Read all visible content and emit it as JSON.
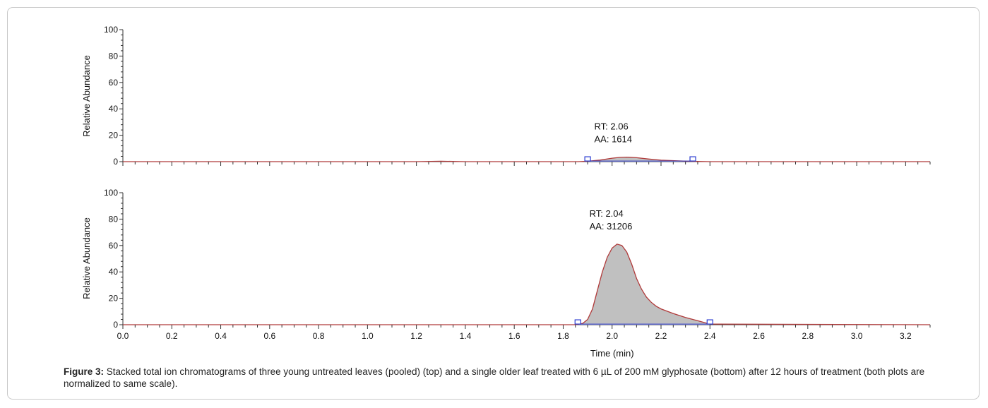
{
  "chart_data": [
    {
      "type": "line",
      "panel": "top",
      "ylabel": "Relative Abundance",
      "xlim": [
        0.0,
        3.3
      ],
      "ylim": [
        0,
        100
      ],
      "yticks": [
        0,
        20,
        40,
        60,
        80,
        100
      ],
      "series": [
        {
          "x": [
            0.0,
            1.2,
            1.3,
            1.4,
            1.86,
            1.9,
            1.95,
            2.0,
            2.03,
            2.06,
            2.1,
            2.15,
            2.2,
            2.3,
            2.4,
            3.3
          ],
          "y": [
            0,
            0,
            0.3,
            0,
            0,
            0.3,
            1.2,
            2.6,
            3.2,
            3.4,
            3.0,
            2.0,
            1.1,
            0.4,
            0,
            0
          ]
        }
      ],
      "baseline": {
        "start": [
          1.9,
          0.5
        ],
        "end": [
          2.33,
          0.5
        ]
      },
      "annotation": {
        "rt_label": "RT: 2.06",
        "aa_label": "AA: 1614",
        "x": 2.06
      }
    },
    {
      "type": "area",
      "panel": "bottom",
      "ylabel": "Relative Abundance",
      "xlabel": "Time (min)",
      "xlim": [
        0.0,
        3.3
      ],
      "ylim": [
        0,
        100
      ],
      "yticks": [
        0,
        20,
        40,
        60,
        80,
        100
      ],
      "xticks": [
        "0.0",
        "0.2",
        "0.4",
        "0.6",
        "0.8",
        "1.0",
        "1.2",
        "1.4",
        "1.6",
        "1.8",
        "2.0",
        "2.2",
        "2.4",
        "2.6",
        "2.8",
        "3.0",
        "3.2"
      ],
      "series": [
        {
          "x": [
            0.0,
            1.85,
            1.88,
            1.9,
            1.92,
            1.94,
            1.96,
            1.98,
            2.0,
            2.02,
            2.04,
            2.06,
            2.08,
            2.1,
            2.12,
            2.14,
            2.16,
            2.18,
            2.2,
            2.25,
            2.3,
            2.35,
            2.4,
            3.3
          ],
          "y": [
            0,
            0,
            1,
            4,
            12,
            26,
            40,
            51,
            58,
            61,
            60,
            55,
            46,
            35,
            27,
            21,
            17,
            14,
            12,
            8.5,
            5.5,
            3,
            0.5,
            0
          ]
        }
      ],
      "baseline": {
        "start": [
          1.86,
          0.5
        ],
        "end": [
          2.4,
          0.5
        ]
      },
      "annotation": {
        "rt_label": "RT: 2.04",
        "aa_label": "AA: 31206",
        "x": 2.04
      },
      "line_color": "#b03a3a",
      "fill_color": "#c0c0c0",
      "baseline_color": "#2a3bd1"
    }
  ],
  "caption": {
    "lead": "Figure 3:",
    "text": " Stacked total ion chromatograms of three young untreated leaves (pooled) (top) and a single older leaf treated with 6 µL of 200 mM glyphosate (bottom) after 12 hours of treatment (both plots are normalized to same scale)."
  }
}
